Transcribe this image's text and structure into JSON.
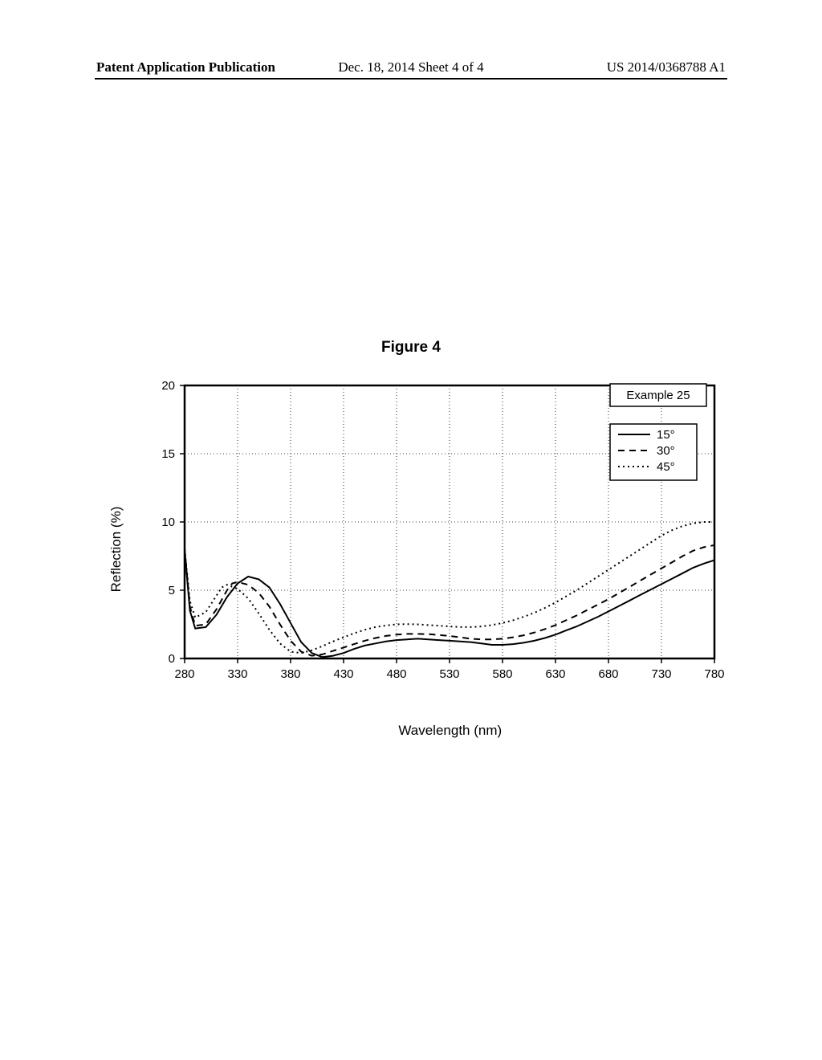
{
  "header": {
    "left": "Patent Application Publication",
    "center": "Dec. 18, 2014  Sheet 4 of 4",
    "right": "US 2014/0368788 A1"
  },
  "figure": {
    "title": "Figure 4",
    "example_label": "Example 25"
  },
  "chart": {
    "type": "line",
    "xlabel": "Wavelength (nm)",
    "ylabel": "Reflection (%)",
    "xlim": [
      280,
      780
    ],
    "ylim": [
      0,
      20
    ],
    "xtick_step": 50,
    "ytick_step": 5,
    "xticks": [
      280,
      330,
      380,
      430,
      480,
      530,
      580,
      630,
      680,
      730,
      780
    ],
    "yticks": [
      0,
      5,
      10,
      15,
      20
    ],
    "background_color": "#ffffff",
    "grid_color": "#000000",
    "grid_dash": "1 3",
    "axis_color": "#000000",
    "axis_width": 2.5,
    "tick_fontsize": 15,
    "label_fontsize": 17,
    "legend": {
      "position": "top-right",
      "box_border": "#000000",
      "items": [
        {
          "label": "15°",
          "style": "solid"
        },
        {
          "label": "30°",
          "style": "dashed"
        },
        {
          "label": "45°",
          "style": "dotted"
        }
      ]
    },
    "series": [
      {
        "name": "15deg",
        "label": "15°",
        "color": "#000000",
        "width": 2,
        "dash": "none",
        "points": [
          [
            280,
            8.0
          ],
          [
            285,
            3.5
          ],
          [
            290,
            2.2
          ],
          [
            300,
            2.3
          ],
          [
            310,
            3.2
          ],
          [
            320,
            4.5
          ],
          [
            330,
            5.5
          ],
          [
            340,
            6.0
          ],
          [
            350,
            5.8
          ],
          [
            360,
            5.2
          ],
          [
            370,
            4.0
          ],
          [
            380,
            2.6
          ],
          [
            390,
            1.2
          ],
          [
            400,
            0.4
          ],
          [
            410,
            0.1
          ],
          [
            420,
            0.2
          ],
          [
            430,
            0.4
          ],
          [
            440,
            0.7
          ],
          [
            450,
            0.95
          ],
          [
            460,
            1.1
          ],
          [
            470,
            1.25
          ],
          [
            480,
            1.35
          ],
          [
            490,
            1.4
          ],
          [
            500,
            1.45
          ],
          [
            510,
            1.4
          ],
          [
            520,
            1.35
          ],
          [
            530,
            1.3
          ],
          [
            540,
            1.25
          ],
          [
            550,
            1.2
          ],
          [
            560,
            1.1
          ],
          [
            570,
            1.0
          ],
          [
            580,
            1.0
          ],
          [
            590,
            1.05
          ],
          [
            600,
            1.15
          ],
          [
            610,
            1.3
          ],
          [
            620,
            1.5
          ],
          [
            630,
            1.75
          ],
          [
            640,
            2.05
          ],
          [
            650,
            2.35
          ],
          [
            660,
            2.7
          ],
          [
            670,
            3.05
          ],
          [
            680,
            3.45
          ],
          [
            690,
            3.85
          ],
          [
            700,
            4.25
          ],
          [
            710,
            4.65
          ],
          [
            720,
            5.05
          ],
          [
            730,
            5.45
          ],
          [
            740,
            5.85
          ],
          [
            750,
            6.25
          ],
          [
            760,
            6.65
          ],
          [
            770,
            6.95
          ],
          [
            780,
            7.2
          ]
        ]
      },
      {
        "name": "30deg",
        "label": "30°",
        "color": "#000000",
        "width": 2,
        "dash": "8 6",
        "points": [
          [
            280,
            8.0
          ],
          [
            285,
            3.8
          ],
          [
            290,
            2.4
          ],
          [
            300,
            2.5
          ],
          [
            310,
            3.6
          ],
          [
            320,
            5.0
          ],
          [
            325,
            5.5
          ],
          [
            330,
            5.6
          ],
          [
            340,
            5.4
          ],
          [
            350,
            4.8
          ],
          [
            360,
            3.8
          ],
          [
            370,
            2.5
          ],
          [
            380,
            1.3
          ],
          [
            390,
            0.5
          ],
          [
            400,
            0.2
          ],
          [
            410,
            0.3
          ],
          [
            420,
            0.55
          ],
          [
            430,
            0.8
          ],
          [
            440,
            1.05
          ],
          [
            450,
            1.3
          ],
          [
            460,
            1.5
          ],
          [
            470,
            1.65
          ],
          [
            480,
            1.75
          ],
          [
            490,
            1.8
          ],
          [
            500,
            1.8
          ],
          [
            510,
            1.78
          ],
          [
            520,
            1.72
          ],
          [
            530,
            1.65
          ],
          [
            540,
            1.55
          ],
          [
            550,
            1.45
          ],
          [
            560,
            1.4
          ],
          [
            570,
            1.4
          ],
          [
            580,
            1.45
          ],
          [
            590,
            1.55
          ],
          [
            600,
            1.7
          ],
          [
            610,
            1.9
          ],
          [
            620,
            2.15
          ],
          [
            630,
            2.45
          ],
          [
            640,
            2.8
          ],
          [
            650,
            3.15
          ],
          [
            660,
            3.55
          ],
          [
            670,
            3.95
          ],
          [
            680,
            4.35
          ],
          [
            690,
            4.8
          ],
          [
            700,
            5.25
          ],
          [
            710,
            5.7
          ],
          [
            720,
            6.15
          ],
          [
            730,
            6.6
          ],
          [
            740,
            7.05
          ],
          [
            750,
            7.5
          ],
          [
            760,
            7.9
          ],
          [
            770,
            8.15
          ],
          [
            780,
            8.3
          ]
        ]
      },
      {
        "name": "45deg",
        "label": "45°",
        "color": "#000000",
        "width": 2,
        "dash": "2 4",
        "points": [
          [
            280,
            8.0
          ],
          [
            285,
            4.2
          ],
          [
            290,
            3.0
          ],
          [
            300,
            3.4
          ],
          [
            310,
            4.6
          ],
          [
            315,
            5.2
          ],
          [
            320,
            5.4
          ],
          [
            330,
            5.1
          ],
          [
            340,
            4.4
          ],
          [
            350,
            3.3
          ],
          [
            360,
            2.1
          ],
          [
            370,
            1.1
          ],
          [
            380,
            0.5
          ],
          [
            390,
            0.4
          ],
          [
            400,
            0.6
          ],
          [
            410,
            0.9
          ],
          [
            420,
            1.25
          ],
          [
            430,
            1.55
          ],
          [
            440,
            1.85
          ],
          [
            450,
            2.1
          ],
          [
            460,
            2.3
          ],
          [
            470,
            2.42
          ],
          [
            480,
            2.5
          ],
          [
            490,
            2.52
          ],
          [
            500,
            2.5
          ],
          [
            510,
            2.45
          ],
          [
            520,
            2.4
          ],
          [
            530,
            2.35
          ],
          [
            540,
            2.3
          ],
          [
            550,
            2.3
          ],
          [
            560,
            2.35
          ],
          [
            570,
            2.45
          ],
          [
            580,
            2.6
          ],
          [
            590,
            2.8
          ],
          [
            600,
            3.05
          ],
          [
            610,
            3.35
          ],
          [
            620,
            3.7
          ],
          [
            630,
            4.1
          ],
          [
            640,
            4.55
          ],
          [
            650,
            5.0
          ],
          [
            660,
            5.5
          ],
          [
            670,
            6.0
          ],
          [
            680,
            6.5
          ],
          [
            690,
            7.0
          ],
          [
            700,
            7.5
          ],
          [
            710,
            8.0
          ],
          [
            720,
            8.5
          ],
          [
            730,
            9.0
          ],
          [
            740,
            9.4
          ],
          [
            750,
            9.7
          ],
          [
            760,
            9.9
          ],
          [
            770,
            10.0
          ],
          [
            780,
            10.0
          ]
        ]
      }
    ]
  }
}
